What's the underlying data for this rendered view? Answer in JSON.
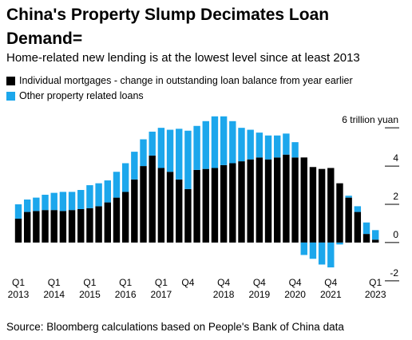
{
  "chart_data": {
    "type": "stacked_bar",
    "title": "China's Property Slump Decimates Loan Demand=",
    "subtitle": "Home-related new lending is at the lowest level since at least 2013",
    "source": "Source: Bloomberg calculations based on People's Bank of China data",
    "categories": [
      "Q1 2013",
      null,
      null,
      null,
      "Q1 2014",
      null,
      null,
      null,
      "Q1 2015",
      null,
      null,
      null,
      "Q1 2016",
      null,
      null,
      null,
      "Q1 2017",
      null,
      null,
      "Q4",
      null,
      null,
      null,
      "Q4 2018",
      null,
      null,
      null,
      "Q4 2019",
      null,
      null,
      null,
      "Q4 2020",
      null,
      null,
      null,
      "Q4 2021",
      null,
      null,
      null,
      null,
      "Q1 2023"
    ],
    "series": [
      {
        "name": "Individual mortgages - change in outstanding loan balance from year earlier",
        "color": "#000000",
        "values": [
          1.25,
          1.6,
          1.65,
          1.7,
          1.7,
          1.65,
          1.7,
          1.75,
          1.8,
          1.9,
          2.1,
          2.35,
          2.65,
          3.3,
          4.0,
          4.55,
          3.9,
          3.7,
          3.3,
          2.8,
          3.8,
          3.85,
          3.9,
          4.05,
          4.15,
          4.25,
          4.35,
          4.45,
          4.35,
          4.45,
          4.6,
          4.45,
          4.45,
          3.95,
          3.85,
          3.9,
          3.1,
          2.35,
          1.6,
          0.45,
          0.15
        ]
      },
      {
        "name": "Other property related loans",
        "color": "#1ca7ec",
        "values": [
          0.75,
          0.65,
          0.7,
          0.8,
          0.9,
          1.0,
          0.95,
          1.0,
          1.2,
          1.2,
          1.15,
          1.35,
          1.5,
          1.45,
          1.4,
          1.25,
          2.1,
          2.2,
          2.65,
          3.05,
          2.3,
          2.5,
          2.7,
          2.55,
          2.2,
          1.75,
          1.55,
          1.3,
          1.25,
          1.15,
          1.1,
          0.8,
          -0.65,
          -0.85,
          -1.15,
          -1.3,
          -0.1,
          0.1,
          0.3,
          0.6,
          0.5
        ]
      }
    ],
    "ylim": [
      -2.3,
      6.8
    ],
    "yticks": [
      -2,
      0,
      2,
      4,
      {
        "value": 6,
        "label": "6 trillion yuan"
      }
    ]
  }
}
